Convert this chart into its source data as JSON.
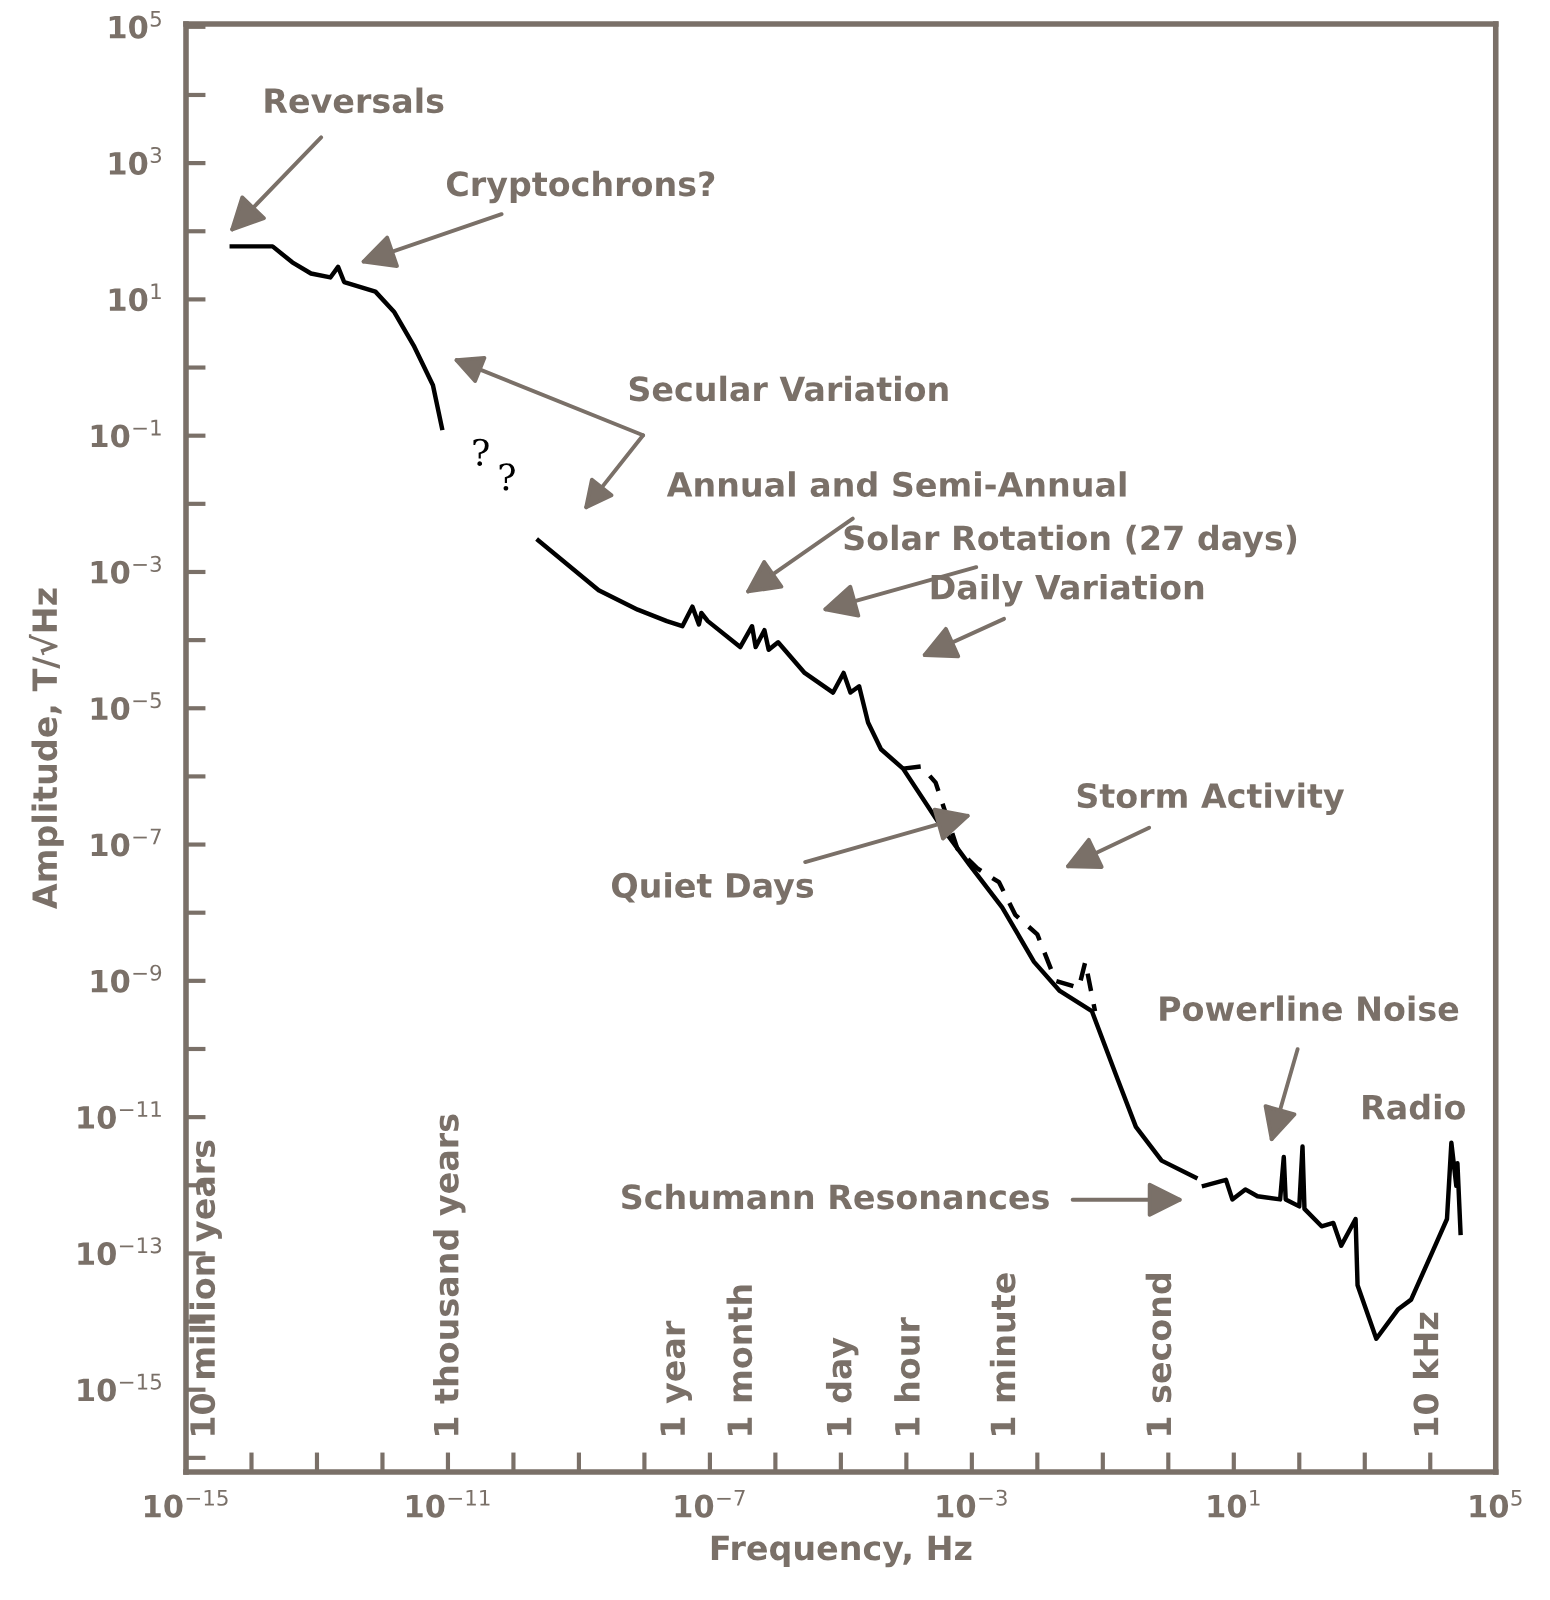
{
  "chart_data": {
    "type": "line",
    "xlabel": "Frequency, Hz",
    "ylabel": "Amplitude, T/√Hz",
    "log": "xy",
    "grid": false,
    "legend": false,
    "xlim": [
      1e-15,
      100000.0
    ],
    "ylim": [
      6.2e-17,
      110000.0
    ],
    "xticks": [
      {
        "value": 1e-15,
        "label": "10$^{−15}$"
      },
      {
        "value": 1e-14,
        "label": null
      },
      {
        "value": 1e-13,
        "label": null
      },
      {
        "value": 1e-12,
        "label": null
      },
      {
        "value": 1e-11,
        "label": "10$^{−11}$"
      },
      {
        "value": 1e-10,
        "label": null
      },
      {
        "value": 1e-09,
        "label": null
      },
      {
        "value": 1e-08,
        "label": null
      },
      {
        "value": 1e-07,
        "label": "10$^{−7}$"
      },
      {
        "value": 1e-06,
        "label": null
      },
      {
        "value": 1e-05,
        "label": null
      },
      {
        "value": 0.0001,
        "label": null
      },
      {
        "value": 0.001,
        "label": "10$^{−3}$"
      },
      {
        "value": 0.01,
        "label": null
      },
      {
        "value": 0.1,
        "label": null
      },
      {
        "value": 1,
        "label": null
      },
      {
        "value": 10,
        "label": "10$^{1}$"
      },
      {
        "value": 100,
        "label": null
      },
      {
        "value": 1000,
        "label": null
      },
      {
        "value": 10000,
        "label": null
      },
      {
        "value": 100000,
        "label": "10$^{5}$"
      }
    ],
    "yticks": [
      {
        "value": 100000.0,
        "label": "10$^{5}$"
      },
      {
        "value": 10000.0,
        "label": null
      },
      {
        "value": 1000.0,
        "label": "10$^{3}$"
      },
      {
        "value": 100,
        "label": null
      },
      {
        "value": 10,
        "label": "10$^{1}$"
      },
      {
        "value": 1,
        "label": null
      },
      {
        "value": 0.1,
        "label": "10$^{−1}$"
      },
      {
        "value": 0.01,
        "label": null
      },
      {
        "value": 0.001,
        "label": "10$^{−3}$"
      },
      {
        "value": 0.0001,
        "label": null
      },
      {
        "value": 1e-05,
        "label": "10$^{−5}$"
      },
      {
        "value": 1e-06,
        "label": null
      },
      {
        "value": 1e-07,
        "label": "10$^{−7}$"
      },
      {
        "value": 1e-08,
        "label": null
      },
      {
        "value": 1e-09,
        "label": "10$^{−9}$"
      },
      {
        "value": 1e-10,
        "label": null
      },
      {
        "value": 1e-11,
        "label": "10$^{−11}$"
      },
      {
        "value": 1e-12,
        "label": null
      },
      {
        "value": 1e-13,
        "label": "10$^{−13}$"
      },
      {
        "value": 1e-14,
        "label": null
      },
      {
        "value": 1e-15,
        "label": "10$^{−15}$"
      },
      {
        "value": 1e-16,
        "label": null
      }
    ],
    "series": [
      {
        "color": "#000000",
        "line_style": "solid",
        "x": [
          5e-15,
          2.1e-14,
          4.2e-14,
          8.1e-14,
          1.6e-13,
          2.1e-13,
          2.6e-13,
          7.8e-13,
          1.5e-12,
          3e-12,
          5.9e-12,
          8.1e-12
        ],
        "values": [
          60,
          60,
          35,
          24,
          21,
          30,
          18,
          13,
          6.6,
          2.1,
          0.55,
          0.13
        ]
      },
      {
        "color": "#000000",
        "line_style": "solid",
        "x": [
          2.4e-10,
          2e-09,
          7.9e-09,
          2.2e-08,
          3.8e-08,
          5.4e-08,
          6.8e-08,
          7.4e-08,
          9.3e-08,
          2.9e-07,
          4.4e-07,
          5e-07,
          6.8e-07,
          7.9e-07,
          1.1e-06,
          2.8e-06,
          7.6e-06,
          1.1e-05,
          1.4e-05,
          1.9e-05,
          2.6e-05,
          4.1e-05,
          8.9e-05,
          0.00031,
          0.00093,
          0.0029,
          0.0089,
          0.022,
          0.068,
          0.17,
          0.32,
          0.79,
          2.6
        ],
        "values": [
          0.0029,
          0.00054,
          0.00028,
          0.00019,
          0.00016,
          0.00031,
          0.00017,
          0.00025,
          0.00019,
          7.9e-05,
          0.00016,
          7.9e-05,
          0.00014,
          7.2e-05,
          9.3e-05,
          3.3e-05,
          1.7e-05,
          3.3e-05,
          1.7e-05,
          2.1e-05,
          6.2e-06,
          2.5e-06,
          1.3e-06,
          2.1e-07,
          5e-08,
          1.2e-08,
          1.9e-09,
          7.1e-10,
          3.6e-10,
          3.5e-11,
          7.2e-12,
          2.3e-12,
          1.3e-12
        ]
      },
      {
        "color": "#000000",
        "line_style": "solid",
        "x": [
          3.5,
          7.6,
          9.5,
          15,
          23,
          51,
          58,
          62,
          100,
          112,
          120,
          219,
          331,
          437,
          724,
          776,
          1500,
          3200,
          5100,
          11000,
          18000,
          21000,
          25000,
          26000,
          29000
        ],
        "values": [
          9.8e-13,
          1.2e-12,
          6.2e-13,
          8.7e-13,
          6.9e-13,
          6.2e-13,
          2.6e-12,
          6.2e-13,
          4.9e-13,
          3.7e-12,
          4.5e-13,
          2.5e-13,
          2.8e-13,
          1.3e-13,
          3.2e-13,
          3.4e-14,
          5.6e-15,
          1.5e-14,
          2.1e-14,
          1.1e-13,
          3.2e-13,
          4.2e-12,
          9.8e-13,
          2.1e-12,
          2e-13
        ]
      },
      {
        "color": "#000000",
        "line_style": "dashed",
        "x": [
          8.9e-05,
          0.00017,
          0.00028,
          0.0006,
          0.0012,
          0.0026,
          0.0046,
          0.01,
          0.019,
          0.043,
          0.054,
          0.076
        ],
        "values": [
          1.3e-06,
          1.4e-06,
          8.1e-07,
          8.7e-08,
          4.5e-08,
          2.8e-08,
          9.3e-09,
          4.8e-09,
          1e-09,
          7.9e-10,
          1.9e-09,
          3.6e-10
        ]
      }
    ],
    "annotations": [
      "Reversals",
      "Cryptochrons?",
      "Secular Variation",
      "Annual and Semi-Annual",
      "Solar Rotation (27 days)",
      "Daily Variation",
      "Quiet Days",
      "Storm Activity",
      "Schumann Resonances",
      "Powerline Noise",
      "Radio",
      "?",
      "?",
      "10 million years",
      "1 thousand years",
      "1 year",
      "1 month",
      "1 day",
      "1 hour",
      "1 minute",
      "1 second",
      "10 kHz"
    ]
  }
}
